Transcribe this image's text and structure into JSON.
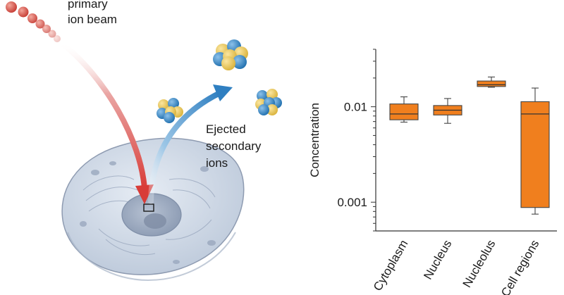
{
  "illustration": {
    "beam_label": [
      "primary",
      "ion beam"
    ],
    "ejected_label": [
      "Ejected",
      "secondary",
      "ions"
    ],
    "colors": {
      "beam": "#d9534f",
      "secondary_arrow": "#2f7fc1",
      "cell_body": "#cfd8e6",
      "nucleus": "#9aa8be",
      "ion_yellow": "#f0cf5a",
      "ion_blue": "#2f86c8"
    }
  },
  "chart_data": {
    "type": "box",
    "ylabel": "Concentration",
    "yscale": "log",
    "ylim": [
      0.0005,
      0.04
    ],
    "yticks": [
      0.001,
      0.01
    ],
    "ytick_labels": [
      "0.001",
      "0.01"
    ],
    "categories": [
      "Cytoplasm",
      "Nucleus",
      "Nucleolus",
      "Cell regions"
    ],
    "boxes": [
      {
        "min": 0.0069,
        "q1": 0.0073,
        "median": 0.0084,
        "q3": 0.0107,
        "max": 0.0127
      },
      {
        "min": 0.0067,
        "q1": 0.0082,
        "median": 0.0092,
        "q3": 0.0103,
        "max": 0.0122
      },
      {
        "min": 0.016,
        "q1": 0.0163,
        "median": 0.017,
        "q3": 0.0186,
        "max": 0.0205
      },
      {
        "min": 0.00075,
        "q1": 0.00088,
        "median": 0.0084,
        "q3": 0.0113,
        "max": 0.0157
      }
    ],
    "box_color": "#f07f1e"
  }
}
